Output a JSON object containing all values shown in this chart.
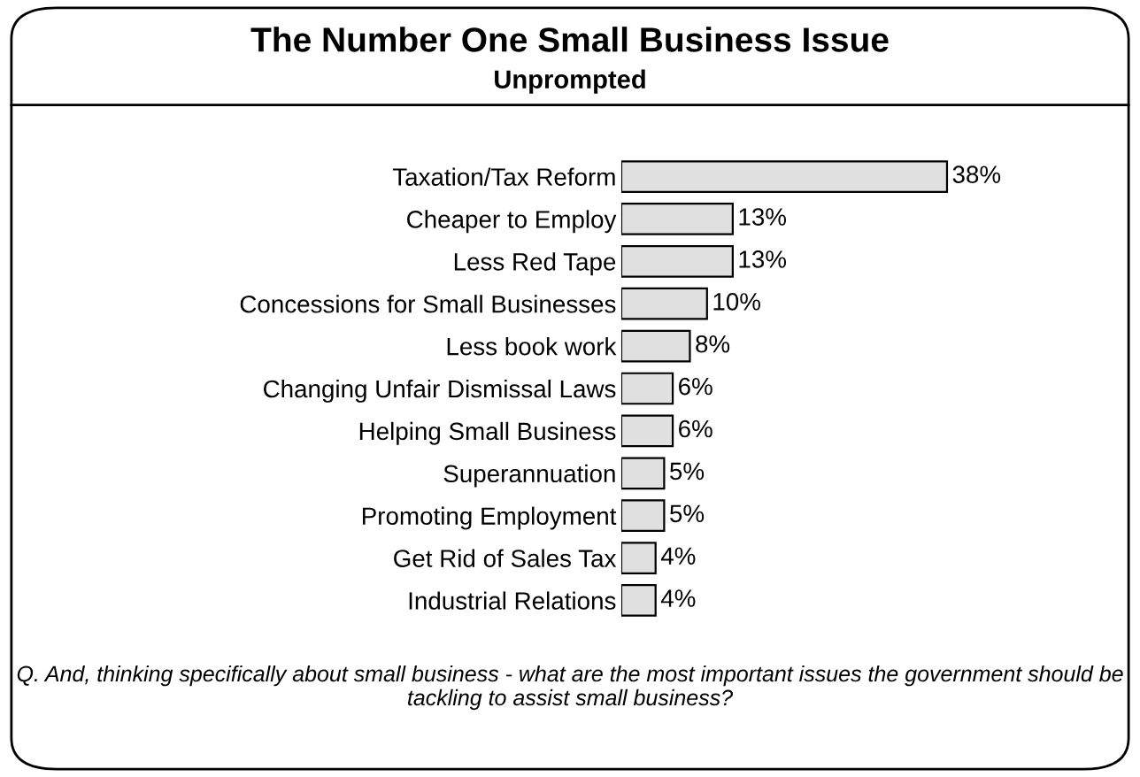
{
  "chart_data": {
    "type": "bar",
    "orientation": "horizontal",
    "title": "The Number One Small Business Issue",
    "subtitle": "Unprompted",
    "categories": [
      "Taxation/Tax Reform",
      "Cheaper to Employ",
      "Less Red Tape",
      "Concessions for Small Businesses",
      "Less book work",
      "Changing Unfair Dismissal Laws",
      "Helping Small Business",
      "Superannuation",
      "Promoting Employment",
      "Get Rid of Sales Tax",
      "Industrial Relations"
    ],
    "values": [
      38,
      13,
      13,
      10,
      8,
      6,
      6,
      5,
      5,
      4,
      4
    ],
    "value_labels": [
      "38%",
      "13%",
      "13%",
      "10%",
      "8%",
      "6%",
      "6%",
      "5%",
      "5%",
      "4%",
      "4%"
    ],
    "color": "#e0e0e0",
    "tick_labels": "y",
    "grid": false,
    "legend": false,
    "annotations": [
      "Q. And, thinking specifically about small business - what are the most important issues the government should be tackling to assist small business?"
    ]
  }
}
